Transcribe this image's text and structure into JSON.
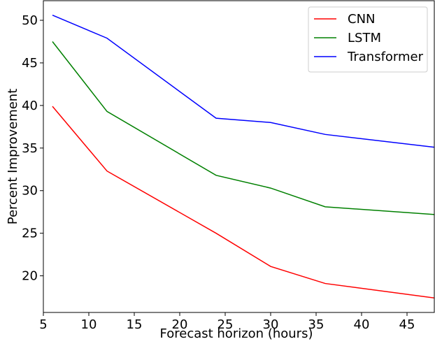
{
  "chart_data": {
    "type": "line",
    "x_label": "Forecast horizon (hours)",
    "y_label": "Percent Improvement",
    "x": [
      6,
      12,
      24,
      30,
      36,
      48
    ],
    "series": [
      {
        "name": "CNN",
        "color": "#ff0000",
        "values": [
          39.9,
          32.3,
          25.0,
          21.1,
          19.1,
          17.4
        ]
      },
      {
        "name": "LSTM",
        "color": "#008000",
        "values": [
          47.5,
          39.3,
          31.8,
          30.3,
          28.1,
          27.2
        ]
      },
      {
        "name": "Transformer",
        "color": "#0000ff",
        "values": [
          50.6,
          47.9,
          38.5,
          38.0,
          36.6,
          35.1
        ]
      }
    ],
    "xlim": [
      5,
      48
    ],
    "xticks": [
      5,
      10,
      15,
      20,
      25,
      30,
      35,
      40,
      45
    ],
    "ylim": [
      15.7,
      52.3
    ],
    "yticks": [
      20,
      25,
      30,
      35,
      40,
      45,
      50
    ],
    "legend": "upper right",
    "grid": false
  }
}
